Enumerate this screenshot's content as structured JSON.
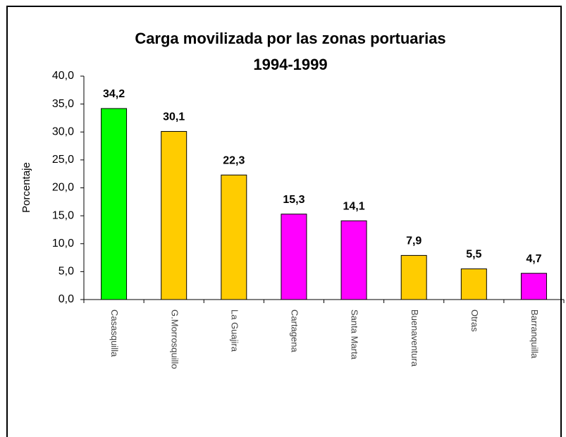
{
  "chart_data": {
    "type": "bar",
    "title": [
      "Carga movilizada por las zonas portuarias",
      "1994-1999"
    ],
    "y_label": "Porcentaje",
    "categories": [
      "Casasquilla",
      "G.Morrosquillo",
      "La Guajira",
      "Cartagena",
      "Santa Marta",
      "Buenaventura",
      "Otras",
      "Barranquilla"
    ],
    "values": [
      34.2,
      30.1,
      22.3,
      15.3,
      14.1,
      7.9,
      5.5,
      4.7
    ],
    "value_labels": [
      "34,2",
      "30,1",
      "22,3",
      "15,3",
      "14,1",
      "7,9",
      "5,5",
      "4,7"
    ],
    "colors": [
      "#00ff00",
      "#ffcc00",
      "#ffcc00",
      "#ff00ff",
      "#ff00ff",
      "#ffcc00",
      "#ffcc00",
      "#ff00ff"
    ],
    "ylim": [
      0,
      40
    ],
    "yticks": [
      {
        "value": 0,
        "label": "0,0"
      },
      {
        "value": 5,
        "label": "5,0"
      },
      {
        "value": 10,
        "label": "10,0"
      },
      {
        "value": 15,
        "label": "15,0"
      },
      {
        "value": 20,
        "label": "20,0"
      },
      {
        "value": 25,
        "label": "25,0"
      },
      {
        "value": 30,
        "label": "30,0"
      },
      {
        "value": 35,
        "label": "35,0"
      },
      {
        "value": 40,
        "label": "40,0"
      }
    ],
    "grid": false
  }
}
